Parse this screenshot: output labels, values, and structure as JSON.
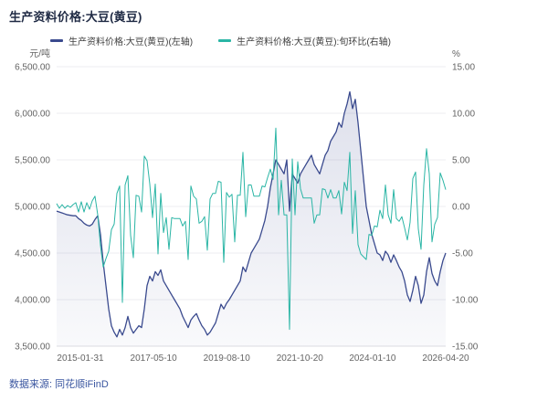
{
  "footer": {
    "source": "数据来源: 同花顺iFinD"
  },
  "colors": {
    "price_line": "#3a4a8e",
    "mom_line": "#2ab5a5",
    "grid": "#ececf1",
    "title_text": "#1f2a44",
    "source_text": "#3a56a0"
  },
  "chart_data": {
    "type": "line",
    "title": "生产资料价格:大豆(黄豆)",
    "legend_position": "top",
    "grid": true,
    "left_axis": {
      "unit": "元/吨",
      "min": 3500,
      "max": 6500,
      "tick_labels": [
        "6,500.00",
        "6,000.00",
        "5,500.00",
        "5,000.00",
        "4,500.00",
        "4,000.00",
        "3,500.00"
      ]
    },
    "right_axis": {
      "unit": "%",
      "min": -15,
      "max": 15,
      "tick_labels": [
        "15.00",
        "10.00",
        "5.00",
        "0.00",
        "-5.00",
        "-10.00",
        "-15.00"
      ]
    },
    "x_tick_labels": [
      "2015-01-31",
      "2017-05-10",
      "2019-08-10",
      "2021-10-20",
      "2024-01-10",
      "2026-04-20"
    ],
    "x_start": "2014-06",
    "x_step_months": 1,
    "series": [
      {
        "name": "生产资料价格:大豆(黄豆)(左轴)",
        "axis": "left",
        "color": "#3a4a8e",
        "area_fill": true,
        "values": [
          4950,
          4940,
          4930,
          4920,
          4910,
          4905,
          4900,
          4900,
          4870,
          4850,
          4820,
          4800,
          4790,
          4810,
          4860,
          4900,
          4700,
          4400,
          4150,
          3900,
          3720,
          3650,
          3600,
          3680,
          3620,
          3700,
          3820,
          3700,
          3640,
          3680,
          3720,
          3700,
          3900,
          4150,
          4250,
          4200,
          4300,
          4260,
          4320,
          4200,
          4150,
          4100,
          4050,
          4000,
          3950,
          3900,
          3820,
          3760,
          3700,
          3780,
          3820,
          3850,
          3780,
          3720,
          3680,
          3620,
          3650,
          3700,
          3750,
          3850,
          3950,
          3900,
          3960,
          4000,
          4050,
          4100,
          4150,
          4200,
          4350,
          4300,
          4400,
          4500,
          4550,
          4600,
          4650,
          4750,
          4850,
          5000,
          5200,
          5350,
          5500,
          5450,
          5400,
          5350,
          5500,
          4950,
          5350,
          5300,
          5250,
          5350,
          5400,
          5450,
          5500,
          5550,
          5450,
          5400,
          5350,
          5450,
          5550,
          5600,
          5700,
          5750,
          5800,
          5900,
          5850,
          6000,
          6100,
          6230,
          6050,
          6150,
          5900,
          5600,
          5300,
          5000,
          4850,
          4700,
          4600,
          4500,
          4480,
          4420,
          4520,
          4480,
          4400,
          4480,
          4420,
          4350,
          4300,
          4200,
          4050,
          3980,
          4100,
          4250,
          4150,
          3960,
          4050,
          4300,
          4450,
          4280,
          4200,
          4150,
          4300,
          4420,
          4500
        ]
      },
      {
        "name": "生产资料价格:大豆(黄豆):旬环比(右轴)",
        "axis": "right",
        "color": "#2ab5a5",
        "area_fill": false,
        "values": [
          0.3,
          -0.2,
          0.2,
          -0.2,
          0.1,
          -0.1,
          0.2,
          0.4,
          -0.6,
          0.5,
          -0.6,
          0.4,
          -0.3,
          0.6,
          1.1,
          -0.9,
          -4.2,
          -6.5,
          -5.6,
          -4.8,
          -2.5,
          -1.9,
          1.4,
          2.2,
          -10.3,
          2.3,
          3.3,
          -3.1,
          -5.5,
          1.2,
          1.1,
          -0.6,
          5.4,
          4.9,
          2.4,
          -1.2,
          2.4,
          -5.1,
          1.4,
          -2.8,
          -1.2,
          -4.6,
          -1.2,
          -1.3,
          -1.3,
          -1.3,
          -2.1,
          -1.6,
          -5.7,
          2.2,
          1.1,
          0.8,
          -1.8,
          -1.6,
          -1.1,
          -4.7,
          0.8,
          1.4,
          1.4,
          2.7,
          2.6,
          -6.0,
          1.5,
          1.0,
          1.3,
          -3.8,
          1.2,
          1.2,
          5.8,
          -1.1,
          2.3,
          2.3,
          1.1,
          1.1,
          1.1,
          2.2,
          2.1,
          3.1,
          4.0,
          2.9,
          8.4,
          -0.9,
          2.8,
          -0.9,
          -0.9,
          -13.2,
          5.1,
          -0.9,
          4.8,
          1.9,
          0.9,
          0.9,
          0.9,
          0.9,
          -1.8,
          -0.9,
          -0.9,
          1.9,
          1.8,
          0.9,
          1.8,
          0.9,
          0.9,
          1.7,
          -0.8,
          2.6,
          1.7,
          5.8,
          -2.9,
          1.7,
          -4.1,
          -5.1,
          -5.4,
          -5.7,
          -3.0,
          -3.1,
          -2.1,
          -2.2,
          -0.4,
          -1.3,
          2.3,
          -0.9,
          -1.8,
          1.8,
          -1.3,
          -1.6,
          -1.1,
          -2.3,
          -3.6,
          -1.7,
          3.0,
          3.7,
          -2.4,
          -4.6,
          2.3,
          6.2,
          3.5,
          -3.8,
          -1.9,
          -1.2,
          3.6,
          2.8,
          1.8
        ]
      }
    ]
  }
}
